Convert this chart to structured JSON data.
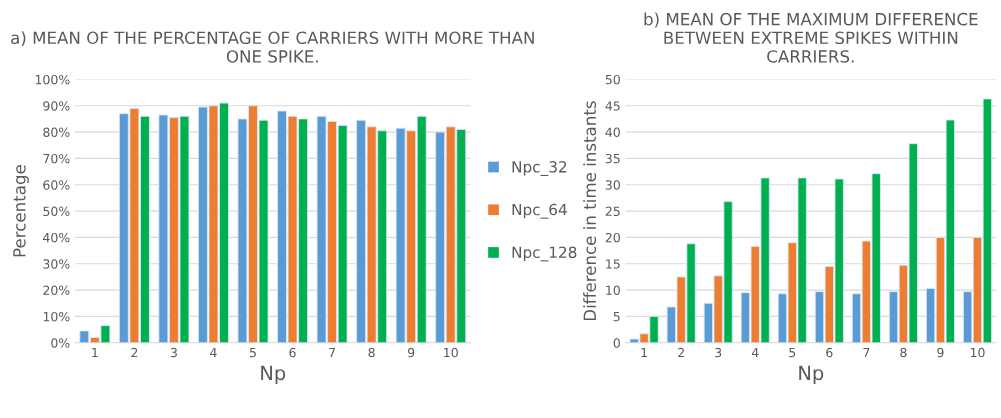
{
  "chart_data": [
    {
      "type": "bar",
      "title": "a) MEAN OF THE PERCENTAGE OF CARRIERS WITH MORE THAN ONE SPIKE.",
      "xlabel": "Np",
      "ylabel": "Percentage",
      "categories": [
        "1",
        "2",
        "3",
        "4",
        "5",
        "6",
        "7",
        "8",
        "9",
        "10"
      ],
      "series": [
        {
          "name": "Npc_32",
          "color": "#5b9bd5",
          "values": [
            4.5,
            87,
            86.5,
            89.5,
            85,
            88,
            86,
            84.5,
            81.5,
            80
          ]
        },
        {
          "name": "Npc_64",
          "color": "#ed7d31",
          "values": [
            2,
            89,
            85.5,
            90,
            90,
            86,
            84,
            82,
            80.5,
            82
          ]
        },
        {
          "name": "Npc_128",
          "color": "#00b050",
          "values": [
            6.5,
            86,
            86,
            91,
            84.5,
            85,
            82.5,
            80.5,
            86,
            81
          ]
        }
      ],
      "ylim": [
        0,
        100
      ],
      "yticks": [
        {
          "value": 0,
          "label": "0%"
        },
        {
          "value": 10,
          "label": "10%"
        },
        {
          "value": 20,
          "label": "20%"
        },
        {
          "value": 30,
          "label": "30%"
        },
        {
          "value": 40,
          "label": "40%"
        },
        {
          "value": 50,
          "label": "50%"
        },
        {
          "value": 60,
          "label": "60%"
        },
        {
          "value": 70,
          "label": "70%"
        },
        {
          "value": 80,
          "label": "80%"
        },
        {
          "value": 90,
          "label": "90%"
        },
        {
          "value": 100,
          "label": "100%"
        }
      ],
      "grid": "y",
      "legend": "right"
    },
    {
      "type": "bar",
      "title": "b) MEAN OF THE MAXIMUM DIFFERENCE BETWEEN EXTREME SPIKES WITHIN CARRIERS.",
      "xlabel": "Np",
      "ylabel": "Difference in time instants",
      "categories": [
        "1",
        "2",
        "3",
        "4",
        "5",
        "6",
        "7",
        "8",
        "9",
        "10"
      ],
      "series": [
        {
          "color": "#5b9bd5",
          "values": [
            0.7,
            6.8,
            7.5,
            9.5,
            9.3,
            9.7,
            9.3,
            9.7,
            10.3,
            9.7
          ]
        },
        {
          "color": "#ed7d31",
          "values": [
            1.7,
            12.5,
            12.7,
            18.3,
            19,
            14.5,
            19.3,
            14.7,
            20,
            20
          ]
        },
        {
          "color": "#00b050",
          "values": [
            5,
            18.8,
            26.8,
            31.3,
            31.3,
            31.1,
            32.1,
            37.8,
            42.3,
            46.3
          ]
        }
      ],
      "ylim": [
        0,
        50
      ],
      "yticks": [
        0,
        5,
        10,
        15,
        20,
        25,
        30,
        35,
        40,
        45,
        50
      ],
      "grid": "y"
    }
  ]
}
